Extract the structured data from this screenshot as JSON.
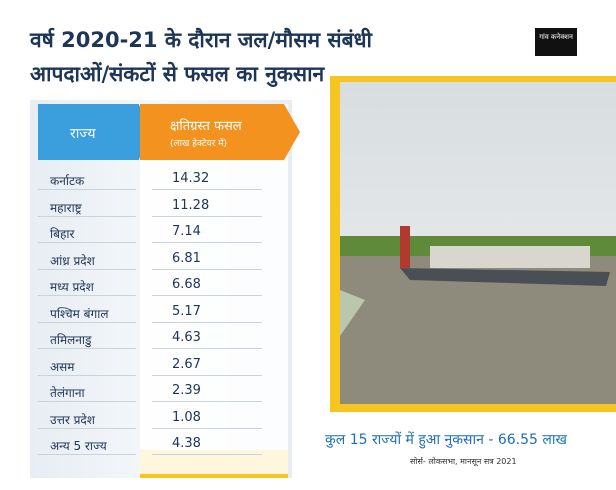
{
  "header": {
    "title_line1": "वर्ष 2020-21 के दौरान जल/मौसम संबंधी",
    "title_line2": "आपदाओं/संकटों से फसल का नुकसान",
    "logo": "गांव कनेक्शन"
  },
  "table": {
    "columns": [
      "राज्य",
      "क्षतिग्रस्त फसल"
    ],
    "column_note": "(लाख हेक्टेयर में)",
    "rows": [
      [
        "कर्नाटक",
        14.32
      ],
      [
        "महाराष्ट्र",
        11.28
      ],
      [
        "बिहार",
        7.14
      ],
      [
        "आंध्र प्रदेश",
        6.81
      ],
      [
        "मध्य प्रदेश",
        6.68
      ],
      [
        "पश्चिम बंगाल",
        5.17
      ],
      [
        "तमिलनाडु",
        4.63
      ],
      [
        "असम",
        2.67
      ],
      [
        "तेलंगाना",
        2.39
      ],
      [
        "उत्तर प्रदेश",
        1.08
      ],
      [
        "अन्य 5 राज्य",
        4.38
      ]
    ]
  },
  "footer": {
    "summary": "कुल 15 राज्यों में हुआ नुकसान - 66.55 लाख",
    "source": "सोर्स- लोकसभा, मानसून सत्र 2021"
  }
}
